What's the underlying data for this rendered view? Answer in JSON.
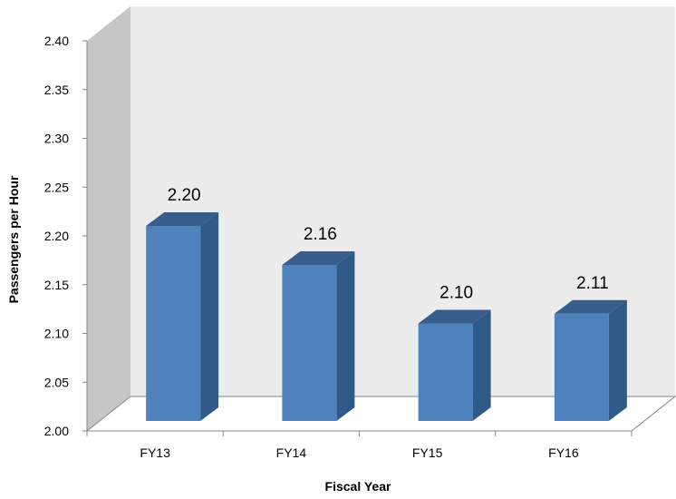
{
  "chart_data": {
    "type": "bar",
    "style": "3d-column",
    "title": "",
    "xlabel": "Fiscal Year",
    "ylabel": "Passengers per Hour",
    "categories": [
      "FY13",
      "FY14",
      "FY15",
      "FY16"
    ],
    "series": [
      {
        "values": [
          2.2,
          2.16,
          2.1,
          2.11
        ]
      }
    ],
    "data_labels": [
      "2.20",
      "2.16",
      "2.10",
      "2.11"
    ],
    "ylim": [
      2.0,
      2.4
    ],
    "y_ticks": [
      "2.00",
      "2.05",
      "2.10",
      "2.15",
      "2.20",
      "2.25",
      "2.30",
      "2.35",
      "2.40"
    ],
    "grid": false,
    "legend": "none",
    "colors": {
      "bar_front": "#4f81bd",
      "bar_side": "#2f5a88",
      "bar_top": "#385d8a",
      "back_wall": "#ececec",
      "side_wall": "#c6c6c6",
      "floor": "#ffffff",
      "axis": "#868686"
    }
  }
}
